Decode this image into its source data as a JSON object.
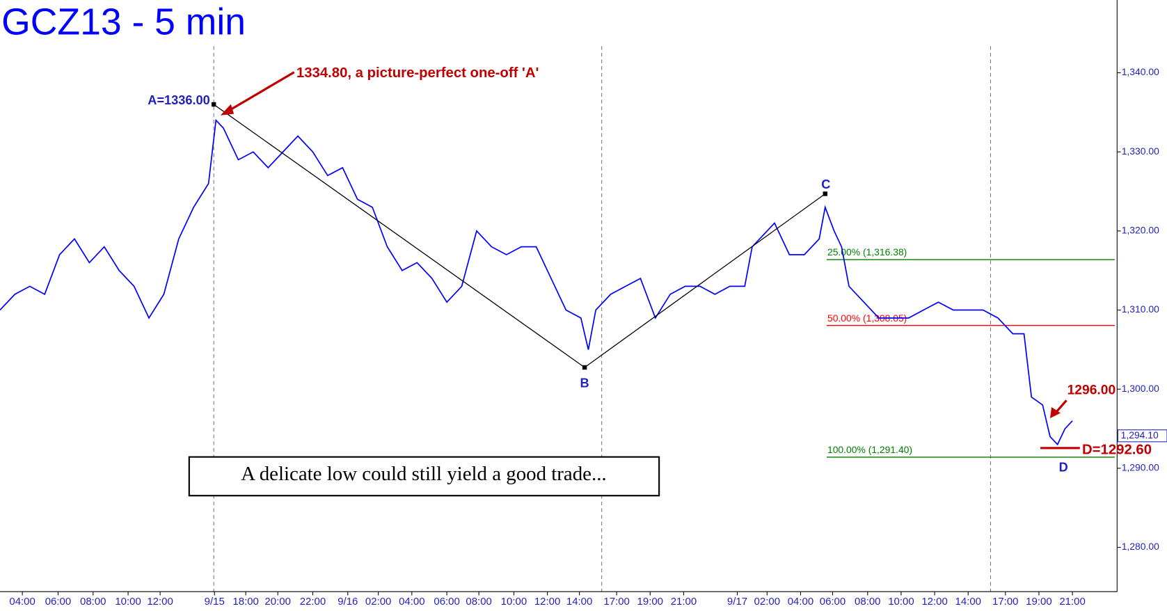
{
  "chart_data": {
    "type": "line",
    "title": "GCZ13 - 5 min",
    "xlim": [
      0,
      1500
    ],
    "ylim": [
      1274.4,
      1349.2
    ],
    "yticks": [
      {
        "value": 1340,
        "label": "1,340.00"
      },
      {
        "value": 1330,
        "label": "1,330.00"
      },
      {
        "value": 1320,
        "label": "1,320.00"
      },
      {
        "value": 1310,
        "label": "1,310.00"
      },
      {
        "value": 1300,
        "label": "1,300.00"
      },
      {
        "value": 1290,
        "label": "1,290.00"
      },
      {
        "value": 1280,
        "label": "1,280.00"
      }
    ],
    "xticks": [
      {
        "value": 30,
        "label": "04:00"
      },
      {
        "value": 78,
        "label": "06:00"
      },
      {
        "value": 125,
        "label": "08:00"
      },
      {
        "value": 172,
        "label": "10:00"
      },
      {
        "value": 215,
        "label": "12:00"
      },
      {
        "value": 288,
        "label": "9/15"
      },
      {
        "value": 330,
        "label": "18:00"
      },
      {
        "value": 373,
        "label": "20:00"
      },
      {
        "value": 420,
        "label": "22:00"
      },
      {
        "value": 467,
        "label": "9/16"
      },
      {
        "value": 508,
        "label": "02:00"
      },
      {
        "value": 553,
        "label": "04:00"
      },
      {
        "value": 600,
        "label": "06:00"
      },
      {
        "value": 643,
        "label": "08:00"
      },
      {
        "value": 690,
        "label": "10:00"
      },
      {
        "value": 735,
        "label": "12:00"
      },
      {
        "value": 778,
        "label": "14:00"
      },
      {
        "value": 828,
        "label": "17:00"
      },
      {
        "value": 873,
        "label": "19:00"
      },
      {
        "value": 918,
        "label": "21:00"
      },
      {
        "value": 990,
        "label": "9/17"
      },
      {
        "value": 1030,
        "label": "02:00"
      },
      {
        "value": 1075,
        "label": "04:00"
      },
      {
        "value": 1118,
        "label": "06:00"
      },
      {
        "value": 1165,
        "label": "08:00"
      },
      {
        "value": 1210,
        "label": "10:00"
      },
      {
        "value": 1255,
        "label": "12:00"
      },
      {
        "value": 1300,
        "label": "14:00"
      },
      {
        "value": 1350,
        "label": "17:00"
      },
      {
        "value": 1395,
        "label": "19:00"
      },
      {
        "value": 1440,
        "label": "21:00"
      }
    ],
    "day_lines": [
      287,
      808,
      1330
    ],
    "series": [
      {
        "color": "#0000ff",
        "x": [
          0,
          20,
          40,
          60,
          80,
          100,
          120,
          140,
          160,
          180,
          200,
          220,
          240,
          260,
          280,
          290,
          300,
          320,
          340,
          360,
          380,
          400,
          420,
          440,
          460,
          480,
          500,
          520,
          540,
          560,
          580,
          600,
          620,
          640,
          660,
          680,
          700,
          720,
          740,
          760,
          780,
          790,
          800,
          820,
          840,
          860,
          880,
          900,
          920,
          940,
          960,
          980,
          1000,
          1010,
          1020,
          1040,
          1060,
          1080,
          1100,
          1108,
          1120,
          1130,
          1140,
          1160,
          1180,
          1200,
          1220,
          1240,
          1260,
          1280,
          1300,
          1320,
          1340,
          1360,
          1375,
          1385,
          1400,
          1410,
          1420,
          1430,
          1440
        ],
        "values": [
          1310,
          1312,
          1313,
          1312,
          1317,
          1319,
          1316,
          1318,
          1315,
          1313,
          1309,
          1312,
          1319,
          1323,
          1326,
          1334,
          1333,
          1329,
          1330,
          1328,
          1330,
          1332,
          1330,
          1327,
          1328,
          1324,
          1323,
          1318,
          1315,
          1316,
          1314,
          1311,
          1313,
          1320,
          1318,
          1317,
          1318,
          1318,
          1314,
          1310,
          1309,
          1305,
          1310,
          1312,
          1313,
          1314,
          1309,
          1312,
          1313,
          1313,
          1312,
          1313,
          1313,
          1318,
          1319,
          1321,
          1317,
          1317,
          1319,
          1323,
          1320,
          1318,
          1313,
          1311,
          1309,
          1309,
          1309,
          1310,
          1311,
          1310,
          1310,
          1310,
          1309,
          1307,
          1307,
          1299,
          1298,
          1294,
          1293,
          1295,
          1296
        ]
      },
      {
        "color": "#000000",
        "x": [
          287,
          785,
          1108
        ],
        "values": [
          1336,
          1302.75,
          1324.7
        ]
      }
    ],
    "levels": [
      {
        "label": "25.00% (1,316.38)",
        "value": 1316.38,
        "color": "#008000"
      },
      {
        "label": "50.00% (1,308.05)",
        "value": 1308.05,
        "color": "#ff0000"
      },
      {
        "label": "100.00% (1,291.40)",
        "value": 1291.4,
        "color": "#008000"
      }
    ],
    "last_price": {
      "value": 1294.1,
      "label": "1,294.10"
    },
    "annotations": {
      "a_label": "A=1336.00",
      "a_note": "1334.80, a picture-perfect one-off 'A'",
      "b": "B",
      "c": "C",
      "d": "D",
      "target": "1296.00",
      "d_label": "D=1292.60",
      "comment": "A delicate low could still yield a good trade..."
    }
  }
}
